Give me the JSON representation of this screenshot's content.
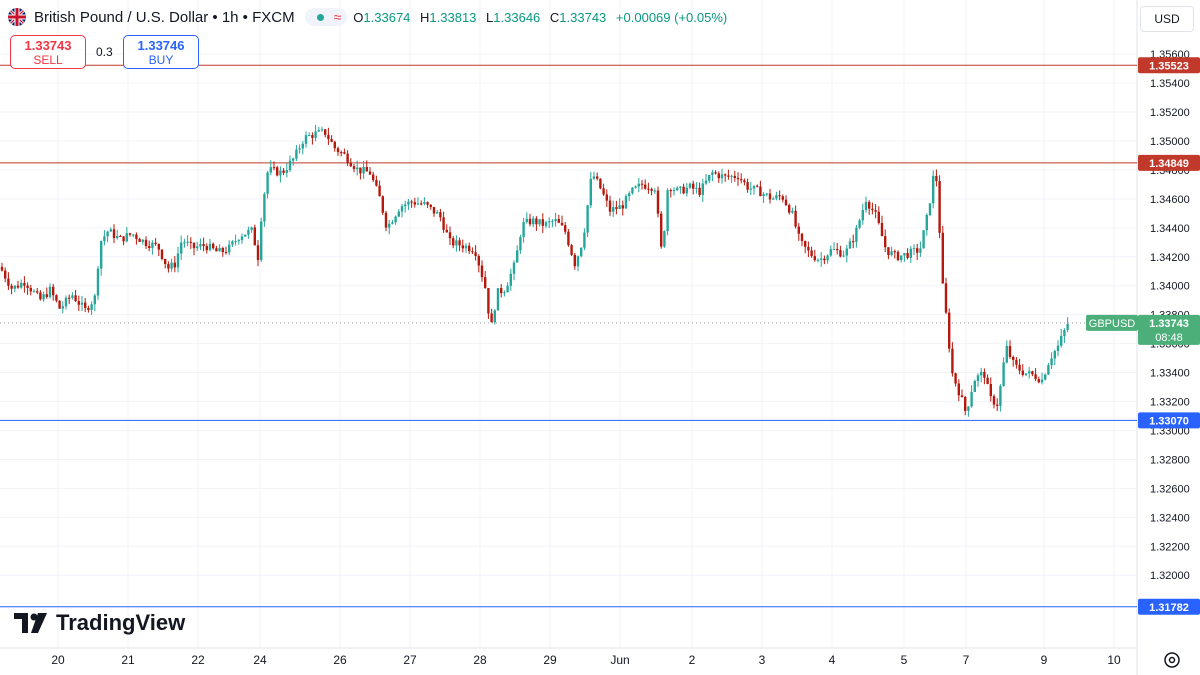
{
  "header": {
    "title": "British Pound / U.S. Dollar • 1h • FXCM",
    "ohlc": [
      {
        "label": "O",
        "value": "1.33674"
      },
      {
        "label": "H",
        "value": "1.33813"
      },
      {
        "label": "L",
        "value": "1.33646"
      },
      {
        "label": "C",
        "value": "1.33743"
      }
    ],
    "change": "+0.00069 (+0.05%)"
  },
  "trade": {
    "sell_price": "1.33743",
    "sell_label": "SELL",
    "spread": "0.3",
    "buy_price": "1.33746",
    "buy_label": "BUY"
  },
  "currency_button": "USD",
  "logo_text": "TradingView",
  "colors": {
    "up": "#26a69a",
    "down": "#b5180c",
    "resistance": "#c0392b",
    "support": "#2962ff",
    "current": "#4caf7a"
  },
  "chart_data": {
    "type": "candlestick",
    "symbol": "GBPUSD",
    "timeframe": "1h",
    "x_ticks": [
      "20",
      "21",
      "22",
      "24",
      "26",
      "27",
      "28",
      "29",
      "Jun",
      "2",
      "3",
      "4",
      "5",
      "7",
      "9",
      "10"
    ],
    "y_ticks": [
      "1.35600",
      "1.35400",
      "1.35200",
      "1.35000",
      "1.34800",
      "1.34600",
      "1.34400",
      "1.34200",
      "1.34000",
      "1.33800",
      "1.33600",
      "1.33400",
      "1.33200",
      "1.33000",
      "1.32800",
      "1.32600",
      "1.32400",
      "1.32200",
      "1.32000"
    ],
    "ylim": [
      1.3158,
      1.3576
    ],
    "horizontal_lines": [
      {
        "price": 1.35523,
        "label": "1.35523",
        "kind": "resistance"
      },
      {
        "price": 1.34849,
        "label": "1.34849",
        "kind": "resistance"
      },
      {
        "price": 1.3307,
        "label": "1.33070",
        "kind": "support"
      },
      {
        "price": 1.31782,
        "label": "1.31782",
        "kind": "support"
      }
    ],
    "current_price": {
      "label": "GBPUSD",
      "price": 1.33743,
      "price_label": "1.33743",
      "countdown": "08:48"
    },
    "price_path": [
      [
        0,
        1.3413
      ],
      [
        12,
        1.3398
      ],
      [
        25,
        1.3403
      ],
      [
        40,
        1.339
      ],
      [
        50,
        1.3397
      ],
      [
        60,
        1.3384
      ],
      [
        72,
        1.3394
      ],
      [
        85,
        1.3383
      ],
      [
        95,
        1.3392
      ],
      [
        100,
        1.343
      ],
      [
        108,
        1.3438
      ],
      [
        120,
        1.3432
      ],
      [
        132,
        1.3436
      ],
      [
        145,
        1.343
      ],
      [
        158,
        1.3427
      ],
      [
        168,
        1.3412
      ],
      [
        175,
        1.3415
      ],
      [
        182,
        1.3432
      ],
      [
        192,
        1.3426
      ],
      [
        205,
        1.3428
      ],
      [
        218,
        1.3423
      ],
      [
        228,
        1.3425
      ],
      [
        240,
        1.3435
      ],
      [
        252,
        1.3438
      ],
      [
        258,
        1.342
      ],
      [
        262,
        1.3454
      ],
      [
        268,
        1.348
      ],
      [
        282,
        1.3478
      ],
      [
        294,
        1.3488
      ],
      [
        304,
        1.3502
      ],
      [
        315,
        1.3505
      ],
      [
        325,
        1.3506
      ],
      [
        335,
        1.3495
      ],
      [
        345,
        1.349
      ],
      [
        358,
        1.348
      ],
      [
        370,
        1.3478
      ],
      [
        380,
        1.346
      ],
      [
        387,
        1.344
      ],
      [
        400,
        1.3455
      ],
      [
        412,
        1.3458
      ],
      [
        425,
        1.3456
      ],
      [
        440,
        1.3448
      ],
      [
        450,
        1.343
      ],
      [
        462,
        1.3428
      ],
      [
        475,
        1.3425
      ],
      [
        485,
        1.34
      ],
      [
        491,
        1.337
      ],
      [
        497,
        1.3395
      ],
      [
        505,
        1.3398
      ],
      [
        515,
        1.3415
      ],
      [
        522,
        1.3442
      ],
      [
        532,
        1.3445
      ],
      [
        545,
        1.3442
      ],
      [
        555,
        1.3445
      ],
      [
        565,
        1.3438
      ],
      [
        575,
        1.3415
      ],
      [
        583,
        1.3432
      ],
      [
        592,
        1.3478
      ],
      [
        600,
        1.3468
      ],
      [
        610,
        1.3452
      ],
      [
        622,
        1.3455
      ],
      [
        632,
        1.3465
      ],
      [
        642,
        1.347
      ],
      [
        655,
        1.3468
      ],
      [
        662,
        1.342
      ],
      [
        668,
        1.347
      ],
      [
        678,
        1.3465
      ],
      [
        690,
        1.3468
      ],
      [
        700,
        1.3465
      ],
      [
        712,
        1.3478
      ],
      [
        725,
        1.3475
      ],
      [
        738,
        1.3476
      ],
      [
        748,
        1.3468
      ],
      [
        760,
        1.3465
      ],
      [
        772,
        1.346
      ],
      [
        782,
        1.3462
      ],
      [
        792,
        1.345
      ],
      [
        800,
        1.343
      ],
      [
        810,
        1.3422
      ],
      [
        820,
        1.3418
      ],
      [
        832,
        1.3425
      ],
      [
        845,
        1.3422
      ],
      [
        855,
        1.3435
      ],
      [
        866,
        1.346
      ],
      [
        876,
        1.3448
      ],
      [
        886,
        1.3425
      ],
      [
        896,
        1.342
      ],
      [
        908,
        1.3422
      ],
      [
        920,
        1.3425
      ],
      [
        928,
        1.345
      ],
      [
        934,
        1.3478
      ],
      [
        938,
        1.347
      ],
      [
        941,
        1.341
      ],
      [
        946,
        1.338
      ],
      [
        952,
        1.334
      ],
      [
        960,
        1.3325
      ],
      [
        966,
        1.3312
      ],
      [
        974,
        1.3335
      ],
      [
        984,
        1.334
      ],
      [
        990,
        1.3322
      ],
      [
        998,
        1.3318
      ],
      [
        1006,
        1.3358
      ],
      [
        1014,
        1.3345
      ],
      [
        1024,
        1.334
      ],
      [
        1034,
        1.3338
      ],
      [
        1042,
        1.3335
      ],
      [
        1050,
        1.335
      ],
      [
        1058,
        1.3358
      ],
      [
        1064,
        1.3368
      ],
      [
        1068,
        1.33743
      ]
    ]
  }
}
